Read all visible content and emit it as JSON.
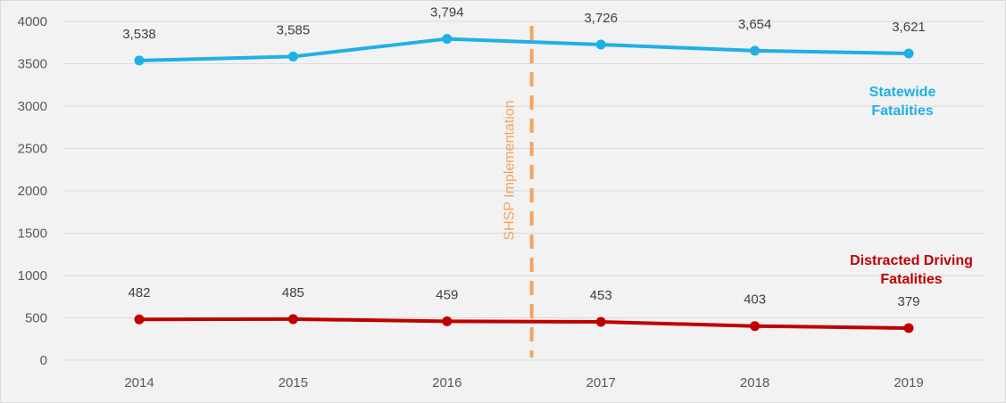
{
  "chart_data": {
    "type": "line",
    "title": "",
    "xlabel": "",
    "ylabel": "",
    "categories": [
      "2014",
      "2015",
      "2016",
      "2017",
      "2018",
      "2019"
    ],
    "ylim": [
      0,
      4000
    ],
    "y_ticks": [
      0,
      500,
      1000,
      1500,
      2000,
      2500,
      3000,
      3500,
      4000
    ],
    "grid": "horizontal",
    "series": [
      {
        "name": "Statewide Fatalities",
        "label_lines": [
          "Statewide",
          "Fatalities"
        ],
        "color": "#1fb0e6",
        "values": [
          3538,
          3585,
          3794,
          3726,
          3654,
          3621
        ],
        "data_labels": [
          "3,538",
          "3,585",
          "3,794",
          "3,726",
          "3,654",
          "3,621"
        ]
      },
      {
        "name": "Distracted Driving Fatalities",
        "label_lines": [
          "Distracted Driving",
          "Fatalities"
        ],
        "color": "#c00000",
        "values": [
          482,
          485,
          459,
          453,
          403,
          379
        ],
        "data_labels": [
          "482",
          "485",
          "459",
          "453",
          "403",
          "379"
        ]
      }
    ],
    "annotations": [
      {
        "type": "vertical-line",
        "text": "SHSP Implementation",
        "x_position": 2016.55,
        "color": "#f4a460",
        "style": "dashed"
      }
    ]
  }
}
